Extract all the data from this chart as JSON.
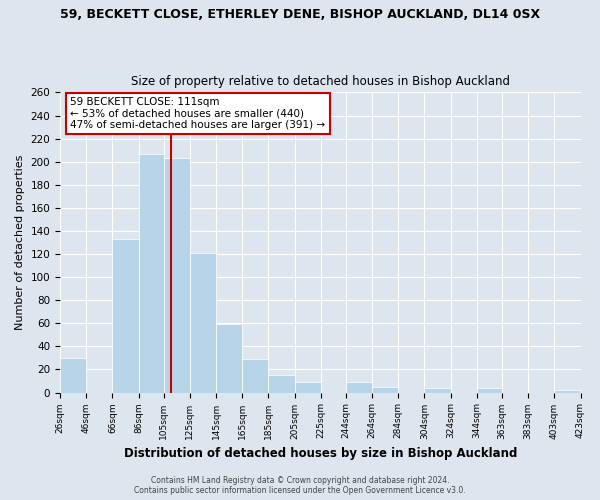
{
  "title": "59, BECKETT CLOSE, ETHERLEY DENE, BISHOP AUCKLAND, DL14 0SX",
  "subtitle": "Size of property relative to detached houses in Bishop Auckland",
  "xlabel": "Distribution of detached houses by size in Bishop Auckland",
  "ylabel": "Number of detached properties",
  "bar_color": "#b8d4e8",
  "bar_edge_color": "#ffffff",
  "bins": [
    26,
    46,
    66,
    86,
    105,
    125,
    145,
    165,
    185,
    205,
    225,
    244,
    264,
    284,
    304,
    324,
    344,
    363,
    383,
    403,
    423
  ],
  "counts": [
    30,
    0,
    133,
    207,
    203,
    121,
    59,
    29,
    15,
    9,
    0,
    9,
    5,
    0,
    4,
    0,
    4,
    0,
    0,
    2
  ],
  "tick_labels": [
    "26sqm",
    "46sqm",
    "66sqm",
    "86sqm",
    "105sqm",
    "125sqm",
    "145sqm",
    "165sqm",
    "185sqm",
    "205sqm",
    "225sqm",
    "244sqm",
    "264sqm",
    "284sqm",
    "304sqm",
    "324sqm",
    "344sqm",
    "363sqm",
    "383sqm",
    "403sqm",
    "423sqm"
  ],
  "ylim": [
    0,
    260
  ],
  "yticks": [
    0,
    20,
    40,
    60,
    80,
    100,
    120,
    140,
    160,
    180,
    200,
    220,
    240,
    260
  ],
  "vline_x": 111,
  "vline_color": "#cc0000",
  "annotation_title": "59 BECKETT CLOSE: 111sqm",
  "annotation_line1": "← 53% of detached houses are smaller (440)",
  "annotation_line2": "47% of semi-detached houses are larger (391) →",
  "annotation_box_color": "#ffffff",
  "annotation_box_edge": "#cc0000",
  "footer1": "Contains HM Land Registry data © Crown copyright and database right 2024.",
  "footer2": "Contains public sector information licensed under the Open Government Licence v3.0.",
  "bg_color": "#dde5ee",
  "plot_bg_color": "#dde5ee",
  "grid_color": "#ffffff",
  "title_fontsize": 9.0,
  "subtitle_fontsize": 8.5
}
